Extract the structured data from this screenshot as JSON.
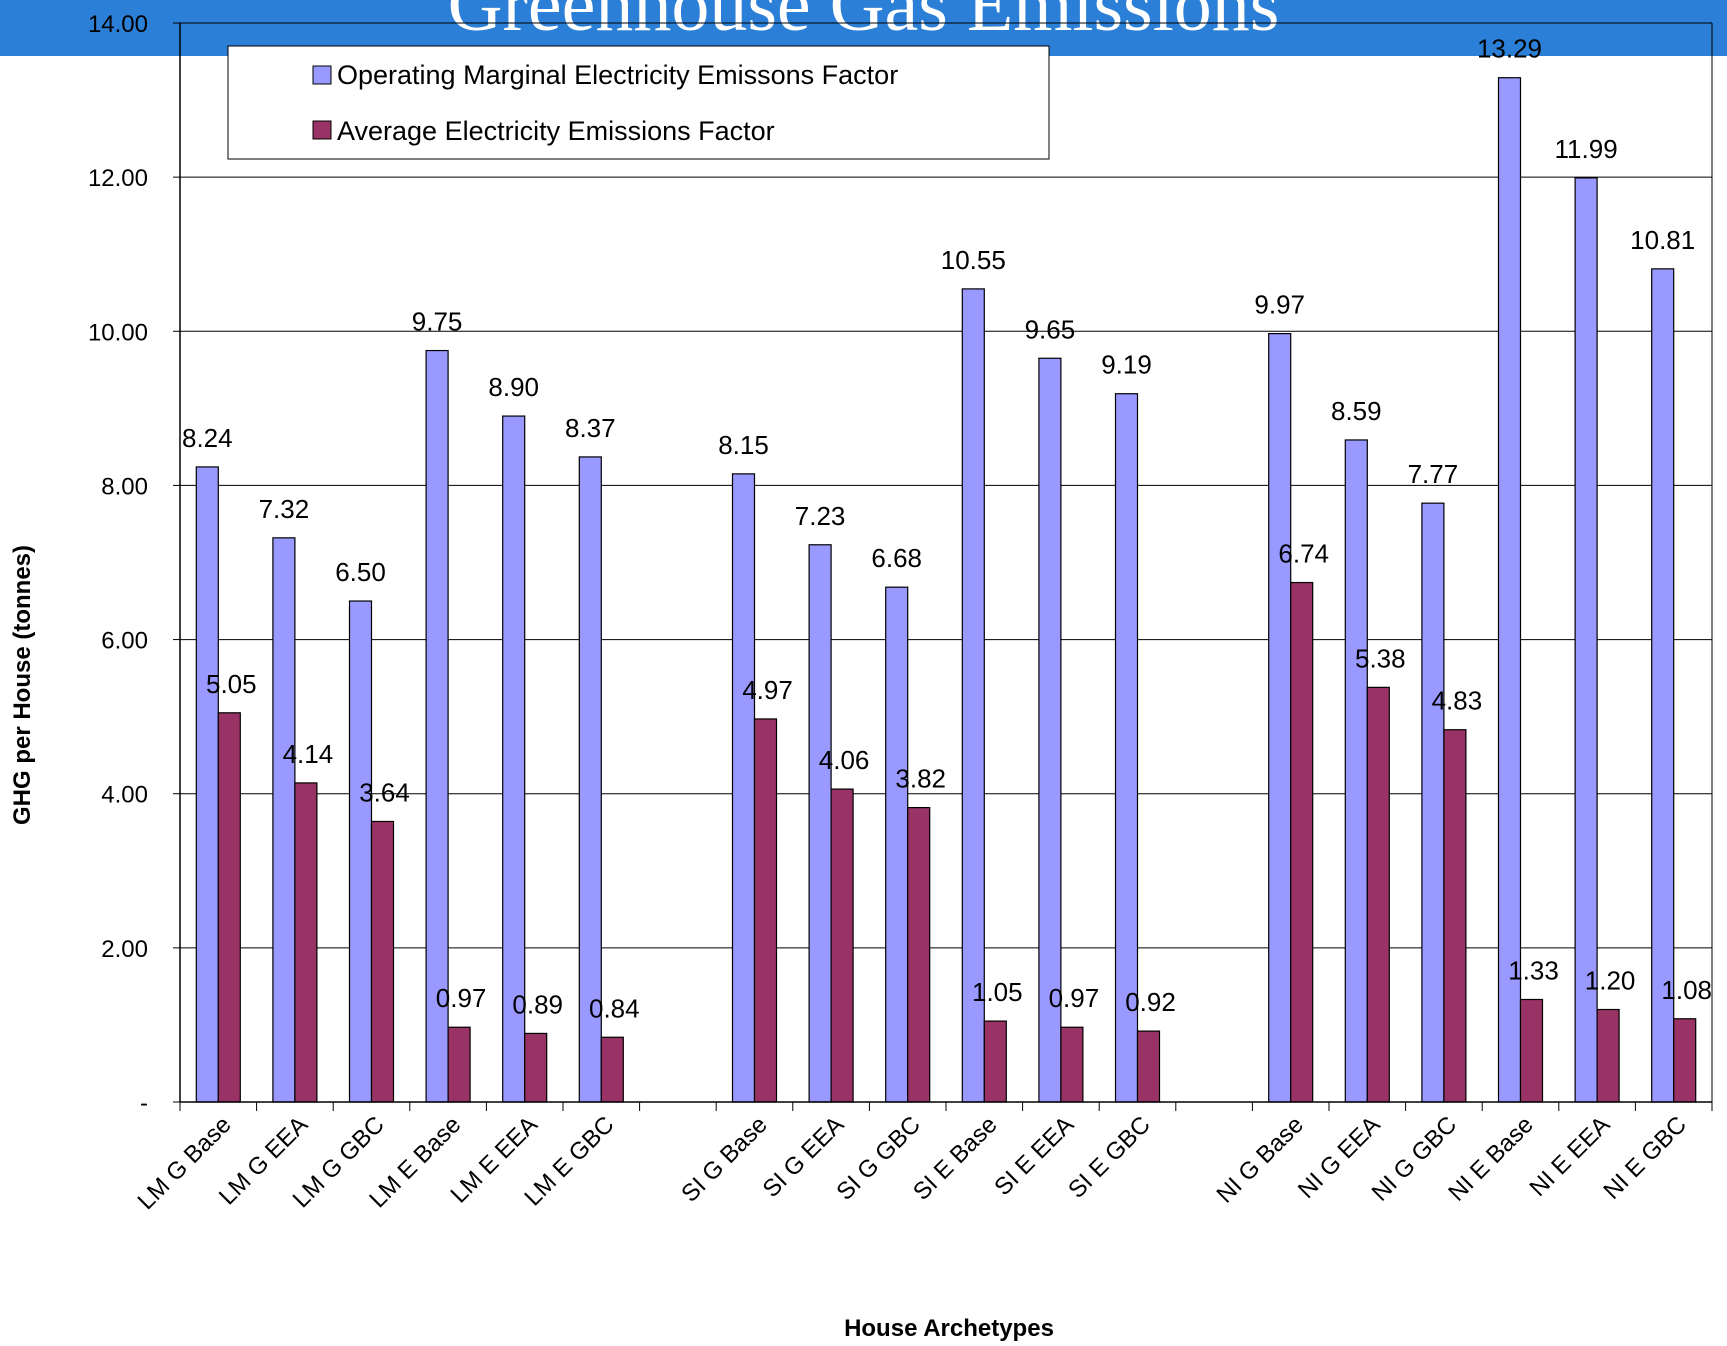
{
  "header": {
    "title": "Greenhouse Gas Emissions"
  },
  "chart_data": {
    "type": "bar",
    "title": "",
    "xlabel": "House Archetypes",
    "ylabel": "GHG per House (tonnes)",
    "ylim": [
      0,
      14
    ],
    "yticks": [
      "-",
      "2.00",
      "4.00",
      "6.00",
      "8.00",
      "10.00",
      "12.00",
      "14.00"
    ],
    "grid": true,
    "legend_position": "top-left",
    "categories": [
      "LM G Base",
      "LM G EEA",
      "LM G GBC",
      "LM E Base",
      "LM E EEA",
      "LM E GBC",
      "",
      "SI G Base",
      "SI G EEA",
      "SI G GBC",
      "SI E Base",
      "SI E EEA",
      "SI E GBC",
      "",
      "NI G Base",
      "NI G EEA",
      "NI G GBC",
      "NI E Base",
      "NI E EEA",
      "NI E GBC"
    ],
    "series": [
      {
        "name": "Operating Marginal Electricity Emissons Factor",
        "color": "#9999ff",
        "values": [
          8.24,
          7.32,
          6.5,
          9.75,
          8.9,
          8.37,
          null,
          8.15,
          7.23,
          6.68,
          10.55,
          9.65,
          9.19,
          null,
          9.97,
          8.59,
          7.77,
          13.29,
          11.99,
          10.81
        ],
        "labels": [
          "8.24",
          "7.32",
          "6.50",
          "9.75",
          "8.90",
          "8.37",
          "",
          "8.15",
          "7.23",
          "6.68",
          "10.55",
          "9.65",
          "9.19",
          "",
          "9.97",
          "8.59",
          "7.77",
          "13.29",
          "11.99",
          "10.81"
        ]
      },
      {
        "name": "Average Electricity Emissions Factor",
        "color": "#993366",
        "values": [
          5.05,
          4.14,
          3.64,
          0.97,
          0.89,
          0.84,
          null,
          4.97,
          4.06,
          3.82,
          1.05,
          0.97,
          0.92,
          null,
          6.74,
          5.38,
          4.83,
          1.33,
          1.2,
          1.08
        ],
        "labels": [
          "5.05",
          "4.14",
          "3.64",
          "0.97",
          "0.89",
          "0.84",
          "",
          "4.97",
          "4.06",
          "3.82",
          "1.05",
          "0.97",
          "0.92",
          "",
          "6.74",
          "5.38",
          "4.83",
          "1.33",
          "1.20",
          "1.08"
        ]
      }
    ]
  }
}
